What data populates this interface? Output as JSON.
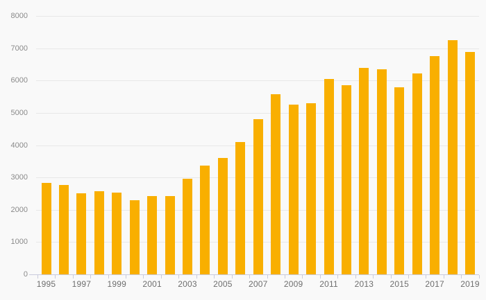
{
  "chart_data": {
    "type": "bar",
    "title": "",
    "xlabel": "",
    "ylabel": "",
    "categories": [
      1995,
      1996,
      1997,
      1998,
      1999,
      2000,
      2001,
      2002,
      2003,
      2004,
      2005,
      2006,
      2007,
      2008,
      2009,
      2010,
      2011,
      2012,
      2013,
      2014,
      2015,
      2016,
      2017,
      2018,
      2019
    ],
    "values": [
      2840,
      2760,
      2520,
      2570,
      2530,
      2290,
      2430,
      2430,
      2950,
      3370,
      3610,
      4100,
      4810,
      5570,
      5250,
      5290,
      6040,
      5860,
      6400,
      6340,
      5790,
      6210,
      6760,
      7250,
      6880
    ],
    "ylim": [
      0,
      8000
    ],
    "yticks": [
      0,
      1000,
      2000,
      3000,
      4000,
      5000,
      6000,
      7000,
      8000
    ],
    "yticklabels": [
      "0",
      "1000",
      "2000",
      "3000",
      "4000",
      "5000",
      "6000",
      "7000",
      "8000"
    ],
    "xticklabels": [
      "1995",
      "1997",
      "1999",
      "2001",
      "2003",
      "2005",
      "2007",
      "2009",
      "2011",
      "2013",
      "2015",
      "2017",
      "2019"
    ],
    "grid": "horizontal",
    "legend": "none",
    "colors": {
      "bar": "#F9AF00",
      "background": "#F9F9F9",
      "gridline": "#E8E8E8",
      "axis": "#C9CBDD",
      "y_label_text": "#8A8A8A",
      "x_label_text": "#6E6E6E"
    }
  }
}
